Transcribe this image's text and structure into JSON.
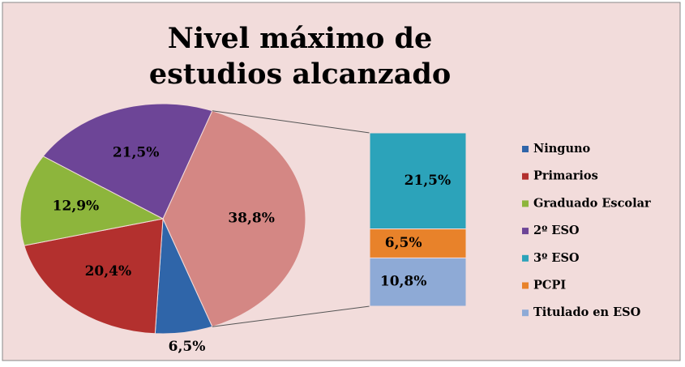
{
  "chart_data": {
    "type": "bar-of-pie",
    "title": "Nivel máximo de estudios alcanzado",
    "categories": [
      "Ninguno",
      "Primarios",
      "Graduado Escolar",
      "2º ESO",
      "3º ESO",
      "PCPI",
      "Titulado en ESO"
    ],
    "values": [
      6.5,
      20.4,
      12.9,
      21.5,
      21.5,
      6.5,
      10.8
    ],
    "value_labels": [
      "6,5%",
      "20,4%",
      "12,9%",
      "21,5%",
      "21,5%",
      "6,5%",
      "10,8%"
    ],
    "colors": [
      "#2f65a9",
      "#b3302e",
      "#8db53c",
      "#6d4597",
      "#2ca3ba",
      "#e8822a",
      "#8eaad6"
    ],
    "bar_count": 3,
    "other_value": 38.8,
    "other_value_label": "38,8%",
    "other_color": "#d48784",
    "legend": "right"
  }
}
